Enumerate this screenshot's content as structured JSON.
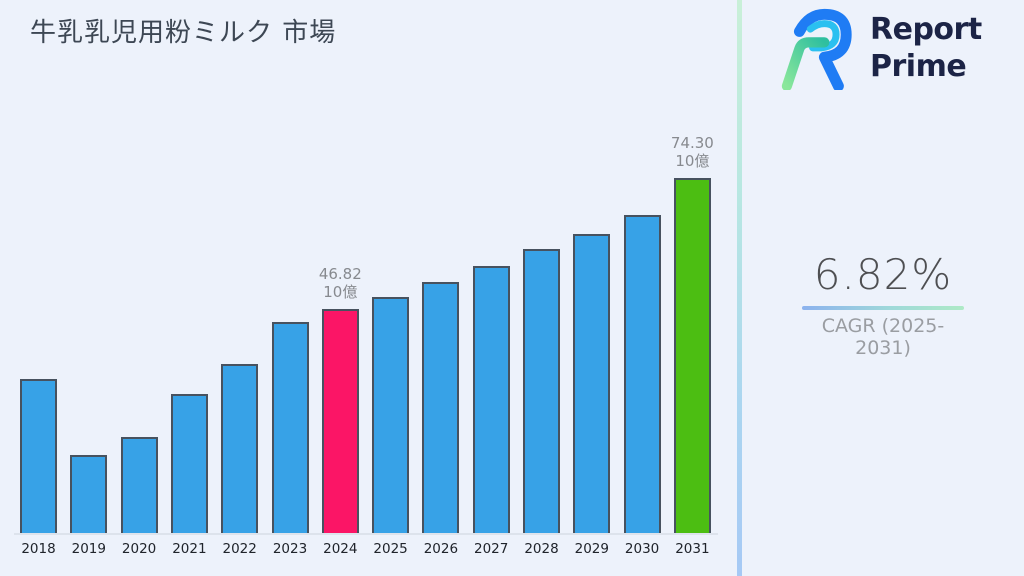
{
  "page": {
    "title": "牛乳乳児用粉ミルク 市場",
    "background": "#edf2fb"
  },
  "logo": {
    "line1": "Report",
    "line2": "Prime"
  },
  "cagr": {
    "value": "6.82%",
    "label": "CAGR (2025-2031)"
  },
  "chart_data": {
    "type": "bar",
    "title": "牛乳乳児用粉ミルク 市場",
    "categories": [
      "2018",
      "2019",
      "2020",
      "2021",
      "2022",
      "2023",
      "2024",
      "2025",
      "2026",
      "2027",
      "2028",
      "2029",
      "2030",
      "2031"
    ],
    "values": [
      32.3,
      16.4,
      20.2,
      29.2,
      35.3,
      44.1,
      46.82,
      49.4,
      52.5,
      55.9,
      59.4,
      62.6,
      66.6,
      74.3
    ],
    "unit": "10億",
    "xlabel": "",
    "ylabel": "",
    "ylim": [
      0,
      80
    ],
    "grid": false,
    "legend": false,
    "bar_default_color": "#37a2e7",
    "colors": [
      "#37a2e7",
      "#37a2e7",
      "#37a2e7",
      "#37a2e7",
      "#37a2e7",
      "#37a2e7",
      "#fb1566",
      "#37a2e7",
      "#37a2e7",
      "#37a2e7",
      "#37a2e7",
      "#37a2e7",
      "#37a2e7",
      "#4cbe12"
    ],
    "annotations": [
      {
        "year": "2024",
        "line1": "46.82",
        "line2": "10億"
      },
      {
        "year": "2031",
        "line1": "74.30",
        "line2": "10億"
      }
    ]
  },
  "style_colors": {
    "bar_border": "#47525f",
    "divider_top": "#c9f0d8",
    "divider_bottom": "#a6c9f5",
    "logo_text": "#1c2446",
    "logo_blue": "#1f7cf4",
    "logo_cyan": "#2bc0f0",
    "logo_green": "#6fdc96"
  }
}
